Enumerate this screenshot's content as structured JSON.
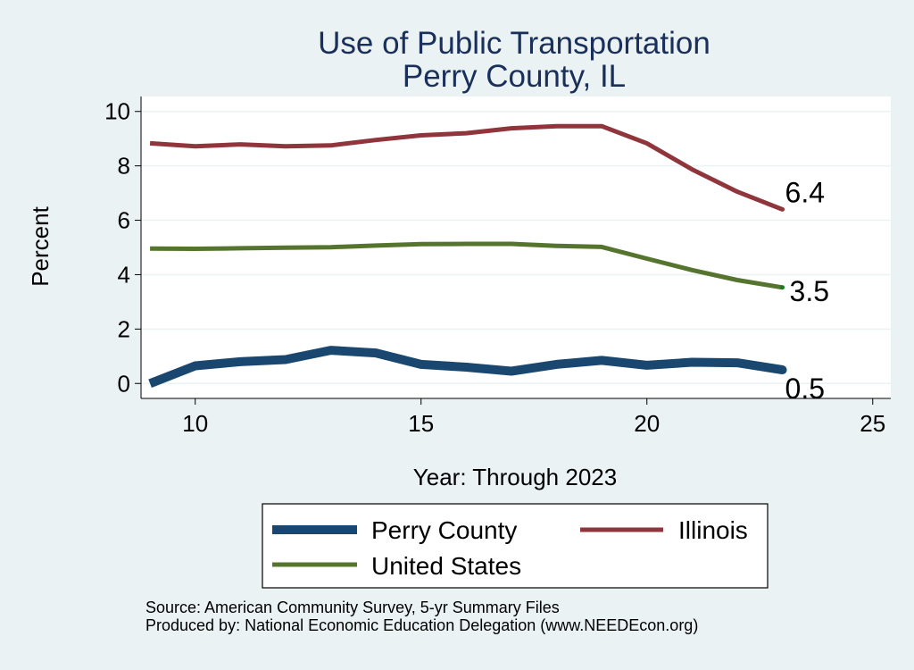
{
  "chart_data": {
    "type": "line",
    "title": "Use of Public Transportation",
    "subtitle": "Perry County, IL",
    "xlabel": "Year: Through 2023",
    "ylabel": "Percent",
    "xlim": [
      8.8,
      25.4
    ],
    "ylim": [
      -0.55,
      10.55
    ],
    "x_ticks": [
      10,
      15,
      20,
      25
    ],
    "y_ticks": [
      0,
      2,
      4,
      6,
      8,
      10
    ],
    "grid": true,
    "legend_position": "bottom",
    "series": [
      {
        "name": "Perry County",
        "color": "#1a476f",
        "x": [
          9,
          10,
          11,
          12,
          13,
          14,
          15,
          16,
          17,
          18,
          19,
          20,
          21,
          22,
          23
        ],
        "values": [
          0.0,
          0.65,
          0.8,
          0.88,
          1.22,
          1.12,
          0.7,
          0.6,
          0.45,
          0.7,
          0.85,
          0.67,
          0.78,
          0.76,
          0.5
        ],
        "end_label": "0.5"
      },
      {
        "name": "Illinois",
        "color": "#90353b",
        "x": [
          9,
          10,
          11,
          12,
          13,
          14,
          15,
          16,
          17,
          18,
          19,
          20,
          21,
          22,
          23
        ],
        "values": [
          8.83,
          8.72,
          8.79,
          8.72,
          8.75,
          8.95,
          9.12,
          9.2,
          9.38,
          9.46,
          9.46,
          8.83,
          7.87,
          7.05,
          6.4
        ],
        "end_label": "6.4"
      },
      {
        "name": "United States",
        "color": "#55752f",
        "x": [
          9,
          10,
          11,
          12,
          13,
          14,
          15,
          16,
          17,
          18,
          19,
          20,
          21,
          22,
          23
        ],
        "values": [
          4.96,
          4.95,
          4.97,
          4.99,
          5.01,
          5.07,
          5.12,
          5.13,
          5.13,
          5.06,
          5.02,
          4.59,
          4.17,
          3.8,
          3.53
        ],
        "end_label": "3.5"
      }
    ],
    "notes": [
      "Source: American Community Survey, 5-yr Summary Files",
      "Produced by: National Economic Education Delegation (www.NEEDEcon.org)"
    ]
  }
}
